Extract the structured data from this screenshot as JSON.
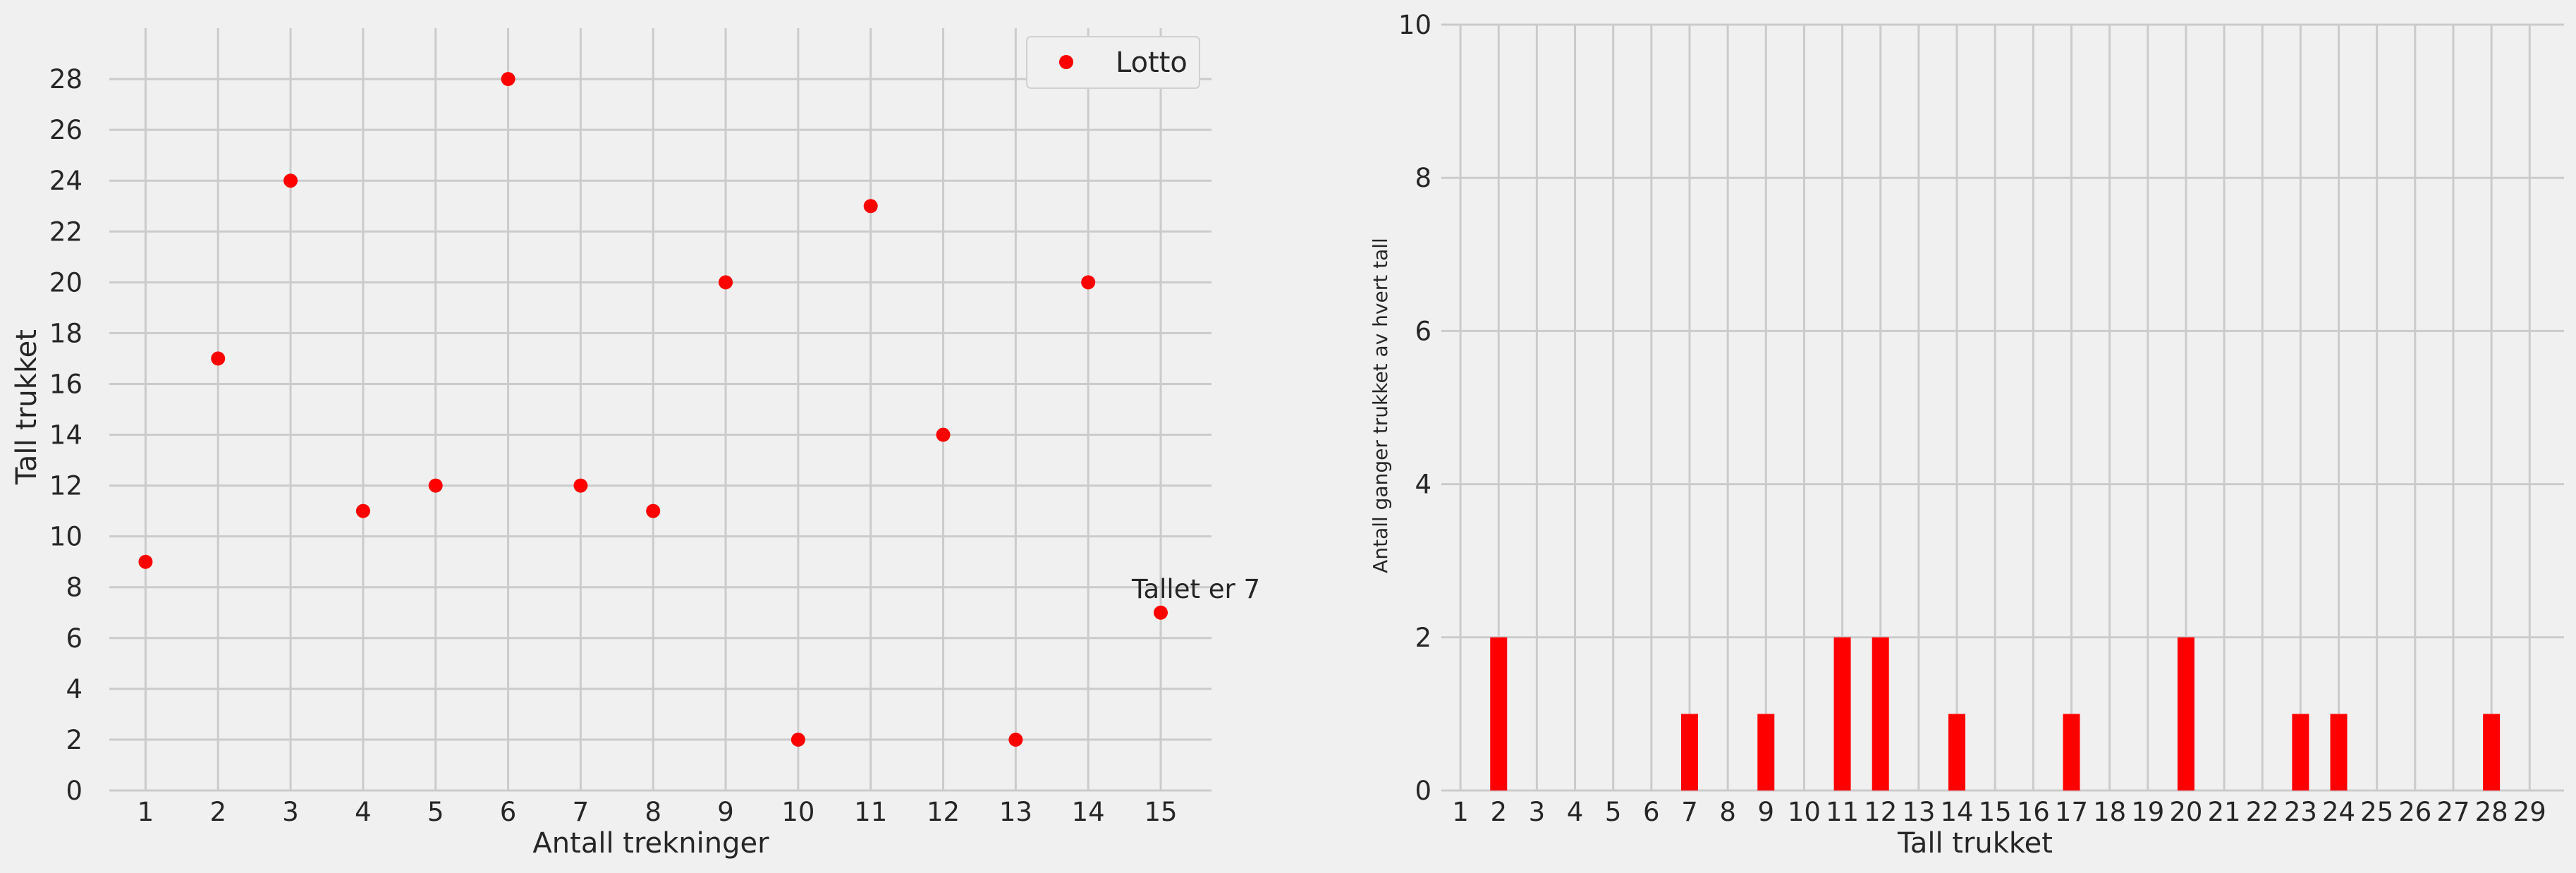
{
  "chart_data": [
    {
      "type": "scatter",
      "xlabel": "Antall trekninger",
      "ylabel": "Tall trukket",
      "xlim": [
        0.5,
        15.7
      ],
      "ylim": [
        0,
        30
      ],
      "xticks": [
        "1",
        "2",
        "3",
        "4",
        "5",
        "6",
        "7",
        "8",
        "9",
        "10",
        "11",
        "12",
        "13",
        "14",
        "15"
      ],
      "yticks": [
        "0",
        "2",
        "4",
        "6",
        "8",
        "10",
        "12",
        "14",
        "16",
        "18",
        "20",
        "22",
        "24",
        "26",
        "28"
      ],
      "grid": true,
      "legend": {
        "position": "top-right",
        "entries": [
          "Lotto"
        ]
      },
      "series": [
        {
          "name": "Lotto",
          "color": "#ff0000",
          "x": [
            1,
            2,
            3,
            4,
            5,
            6,
            7,
            8,
            9,
            10,
            11,
            12,
            13,
            14,
            15
          ],
          "y": [
            9,
            17,
            24,
            11,
            12,
            28,
            12,
            11,
            20,
            2,
            23,
            14,
            2,
            20,
            7
          ]
        }
      ],
      "annotations": [
        {
          "text": "Tallet er 7",
          "x": 15,
          "y": 7
        }
      ]
    },
    {
      "type": "bar",
      "xlabel": "Tall trukket",
      "ylabel": "Antall ganger trukket av hvert tall",
      "xlim": [
        0.5,
        29.9
      ],
      "ylim": [
        0,
        10
      ],
      "xticks": [
        "1",
        "2",
        "3",
        "4",
        "5",
        "6",
        "7",
        "8",
        "9",
        "10",
        "11",
        "12",
        "13",
        "14",
        "15",
        "16",
        "17",
        "18",
        "19",
        "20",
        "21",
        "22",
        "23",
        "24",
        "25",
        "26",
        "27",
        "28",
        "29"
      ],
      "yticks": [
        "0",
        "2",
        "4",
        "6",
        "8",
        "10"
      ],
      "grid": true,
      "color": "#ff0000",
      "bars": [
        {
          "x": 2,
          "value": 2
        },
        {
          "x": 7,
          "value": 1
        },
        {
          "x": 9,
          "value": 1
        },
        {
          "x": 11,
          "value": 2
        },
        {
          "x": 12,
          "value": 2
        },
        {
          "x": 14,
          "value": 1
        },
        {
          "x": 17,
          "value": 1
        },
        {
          "x": 20,
          "value": 2
        },
        {
          "x": 23,
          "value": 1
        },
        {
          "x": 24,
          "value": 1
        },
        {
          "x": 28,
          "value": 1
        }
      ]
    }
  ]
}
